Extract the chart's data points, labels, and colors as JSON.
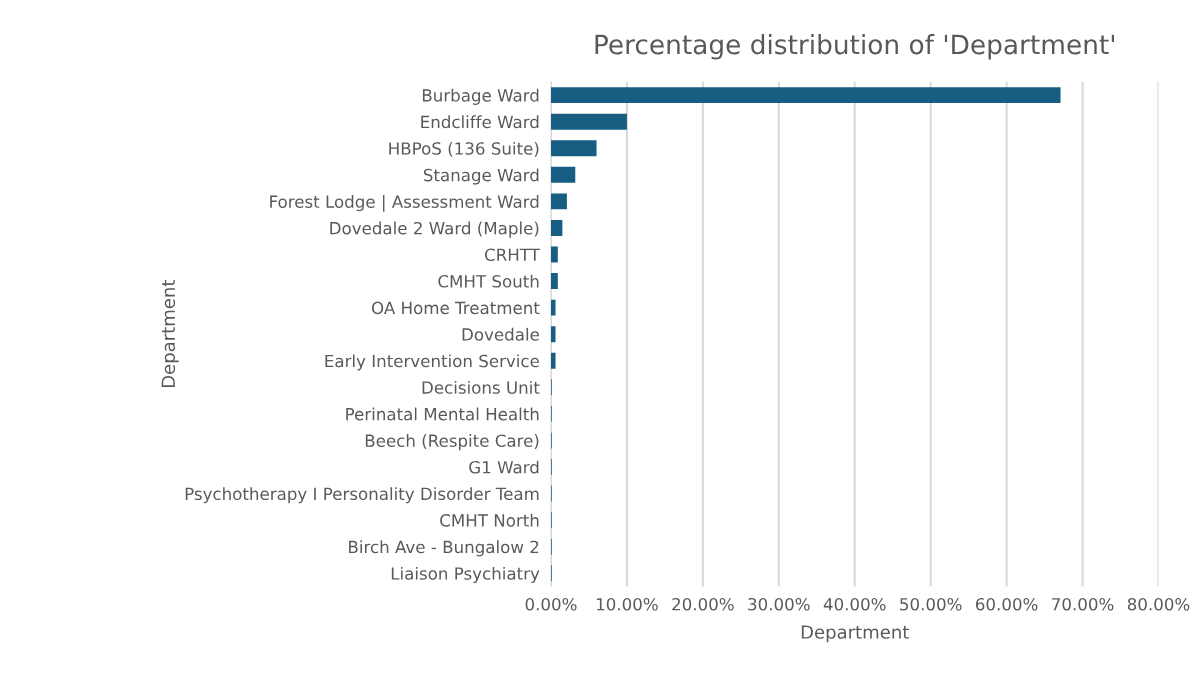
{
  "chart_data": {
    "type": "bar",
    "orientation": "horizontal",
    "title": "Percentage distribution of 'Department'",
    "xlabel": "Department",
    "ylabel": "Department",
    "categories": [
      "Burbage Ward",
      "Endcliffe Ward",
      "HBPoS (136 Suite)",
      "Stanage Ward",
      "Forest Lodge | Assessment Ward",
      "Dovedale 2 Ward (Maple)",
      "CRHTT",
      "CMHT South",
      "OA Home Treatment",
      "Dovedale",
      "Early Intervention Service",
      "Decisions Unit",
      "Perinatal Mental Health",
      "Beech (Respite Care)",
      "G1 Ward",
      "Psychotherapy I Personality Disorder Team",
      "CMHT North",
      "Birch Ave - Bungalow 2",
      "Liaison Psychiatry"
    ],
    "values": [
      67.1,
      10.0,
      6.0,
      3.2,
      2.1,
      1.5,
      0.9,
      0.9,
      0.6,
      0.6,
      0.6,
      0.1,
      0.1,
      0.1,
      0.1,
      0.1,
      0.1,
      0.1,
      0.1
    ],
    "color": "#175e82",
    "xlim": [
      0,
      80
    ],
    "xticks": [
      {
        "value": 0,
        "label": "0.00%"
      },
      {
        "value": 10,
        "label": "10.00%"
      },
      {
        "value": 20,
        "label": "20.00%"
      },
      {
        "value": 30,
        "label": "30.00%"
      },
      {
        "value": 40,
        "label": "40.00%"
      },
      {
        "value": 50,
        "label": "50.00%"
      },
      {
        "value": 60,
        "label": "60.00%"
      },
      {
        "value": 70,
        "label": "70.00%"
      },
      {
        "value": 80,
        "label": "80.00%"
      }
    ],
    "grid": "x",
    "legend": false
  }
}
